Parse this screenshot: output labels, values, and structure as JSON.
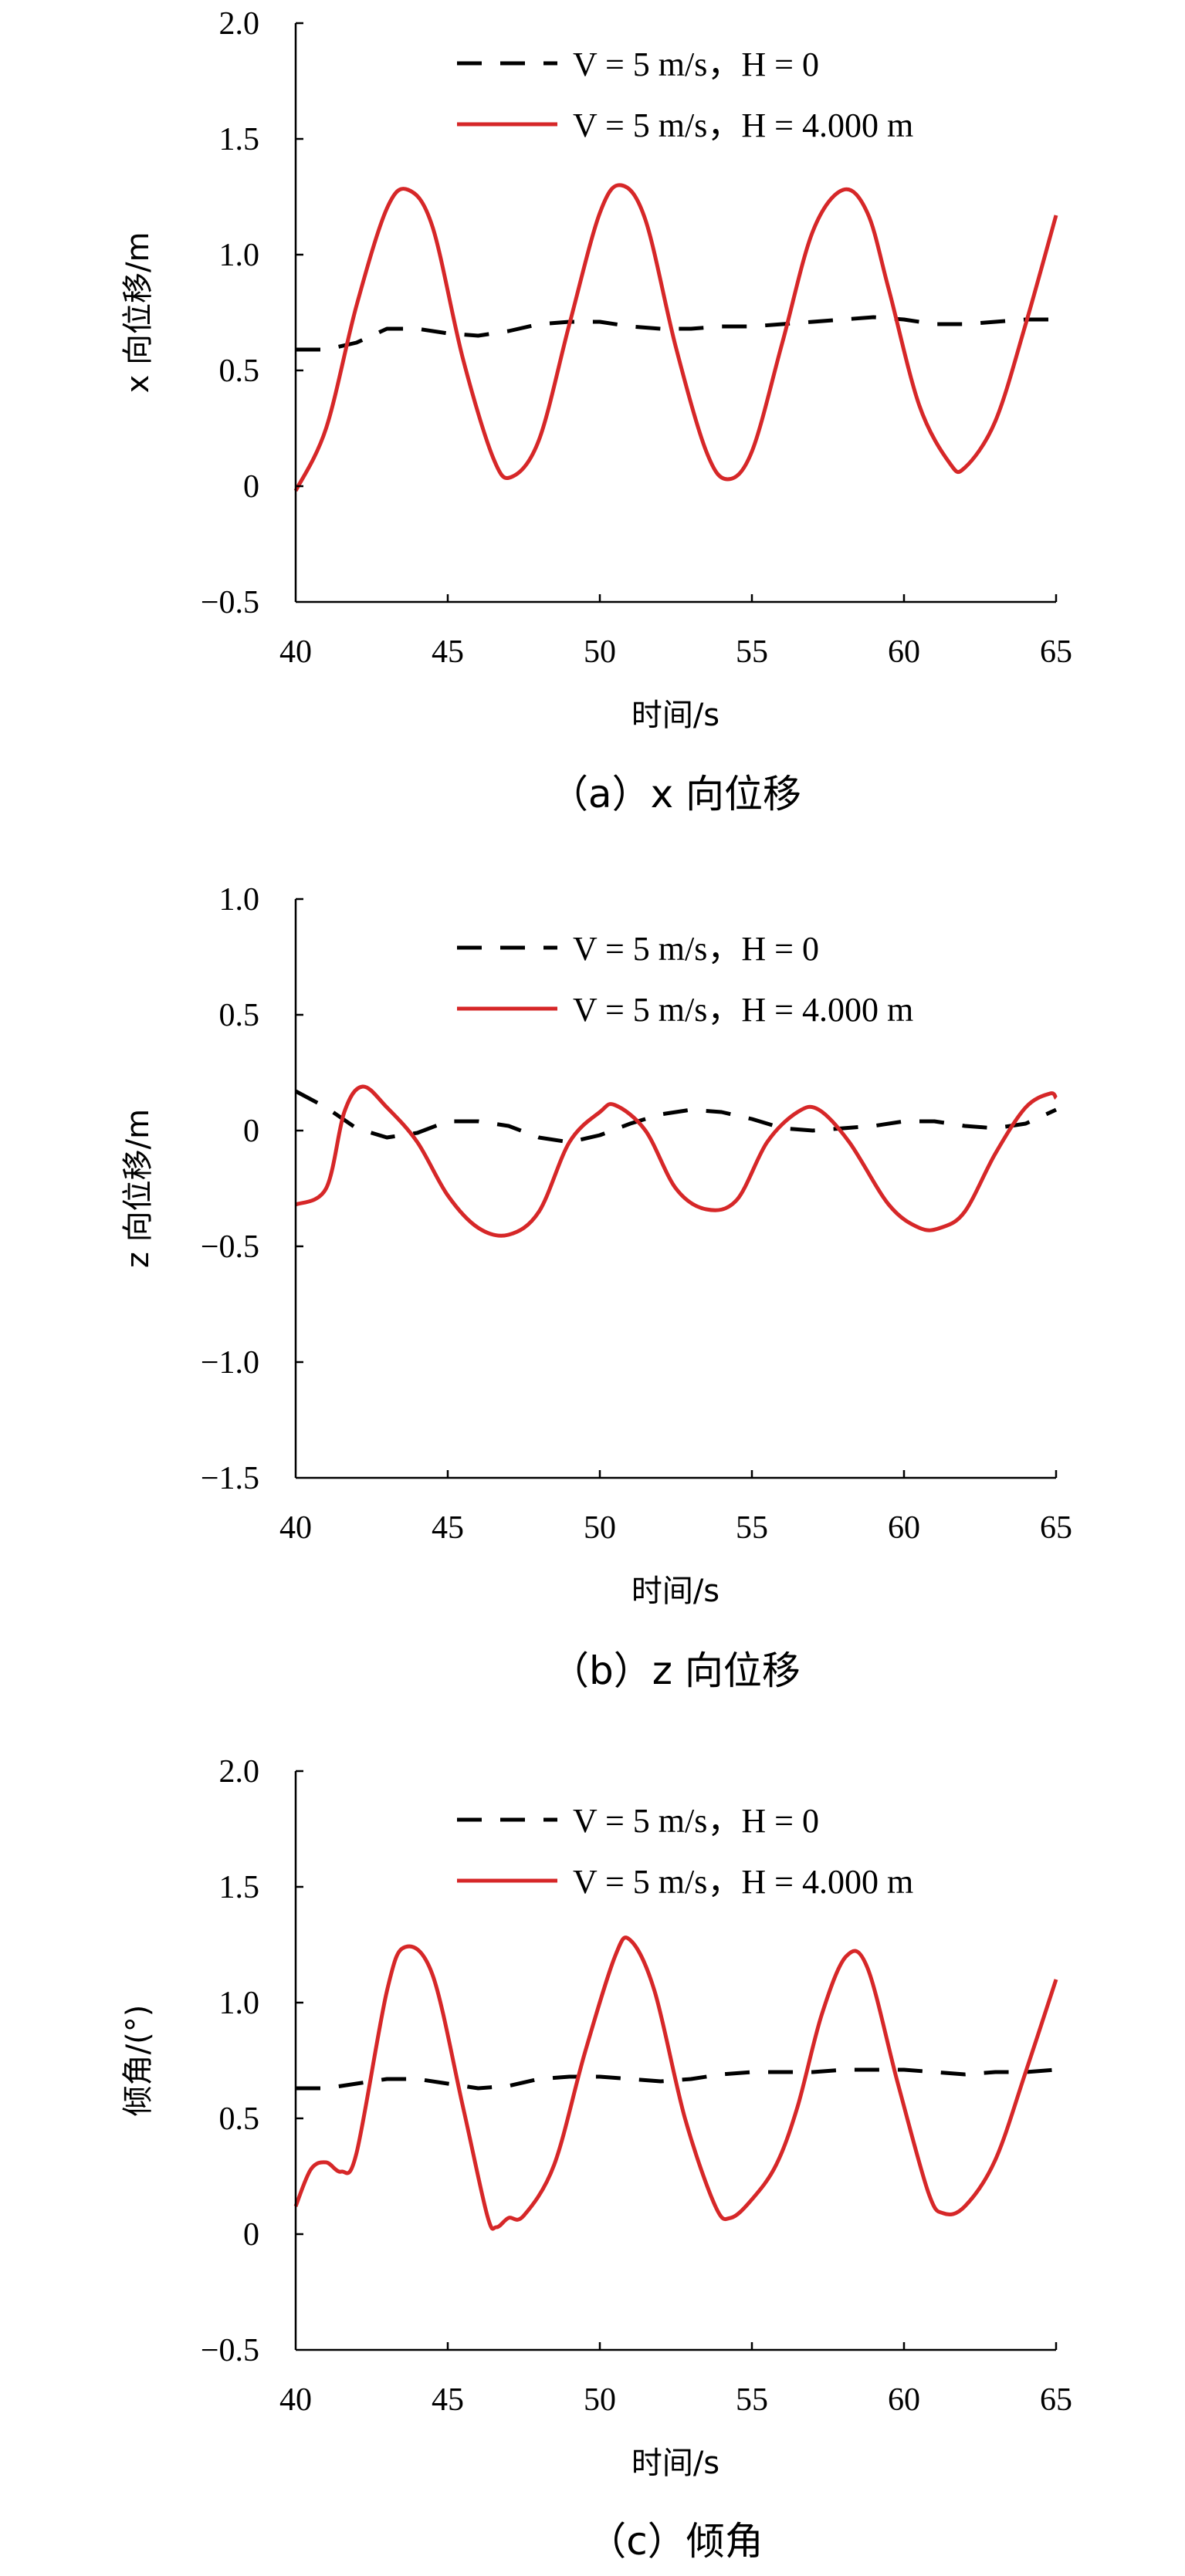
{
  "chart_data": [
    {
      "type": "line",
      "caption": "（a）x 向位移",
      "xlabel": "时间/s",
      "ylabel": "x 向位移/m",
      "xlim": [
        40,
        65
      ],
      "ylim": [
        -0.5,
        2.0
      ],
      "xticks": [
        "40",
        "45",
        "50",
        "55",
        "60",
        "65"
      ],
      "yticks": [
        "−0.5",
        "0",
        "0.5",
        "1.0",
        "1.5",
        "2.0"
      ],
      "legend_position": "top-right",
      "series": [
        {
          "name": "V = 5 m/s，H = 0",
          "style": "dashed",
          "color": "#000000",
          "x": [
            40,
            41,
            42,
            43,
            44,
            45,
            46,
            47,
            48,
            49,
            50,
            51,
            52,
            53,
            54,
            55,
            56,
            57,
            58,
            59,
            60,
            61,
            62,
            63,
            64,
            65
          ],
          "y": [
            0.59,
            0.59,
            0.62,
            0.68,
            0.68,
            0.66,
            0.65,
            0.67,
            0.7,
            0.71,
            0.71,
            0.69,
            0.68,
            0.68,
            0.69,
            0.69,
            0.7,
            0.71,
            0.72,
            0.73,
            0.72,
            0.7,
            0.7,
            0.71,
            0.72,
            0.72
          ]
        },
        {
          "name": "V = 5 m/s，H = 4.000 m",
          "style": "solid",
          "color": "#d62728",
          "x": [
            40,
            41,
            42,
            43,
            43.7,
            44.5,
            45.5,
            46.5,
            47.1,
            48,
            49,
            50,
            50.7,
            51.5,
            52.5,
            53.5,
            54.2,
            55,
            56,
            57,
            58,
            58.8,
            59.5,
            60.5,
            61.5,
            62,
            63,
            64,
            65
          ],
          "y": [
            -0.02,
            0.25,
            0.78,
            1.2,
            1.28,
            1.12,
            0.55,
            0.12,
            0.04,
            0.2,
            0.7,
            1.18,
            1.3,
            1.15,
            0.6,
            0.15,
            0.03,
            0.15,
            0.62,
            1.1,
            1.28,
            1.18,
            0.85,
            0.35,
            0.1,
            0.08,
            0.28,
            0.7,
            1.17
          ]
        }
      ]
    },
    {
      "type": "line",
      "caption": "（b）z 向位移",
      "xlabel": "时间/s",
      "ylabel": "z 向位移/m",
      "xlim": [
        40,
        65
      ],
      "ylim": [
        -1.5,
        1.0
      ],
      "xticks": [
        "40",
        "45",
        "50",
        "55",
        "60",
        "65"
      ],
      "yticks": [
        "−1.5",
        "−1.0",
        "−0.5",
        "0",
        "0.5",
        "1.0"
      ],
      "legend_position": "top-right",
      "series": [
        {
          "name": "V = 5 m/s，H = 0",
          "style": "dashed",
          "color": "#000000",
          "x": [
            40,
            41,
            42,
            43,
            44,
            45,
            46,
            47,
            48,
            49,
            50,
            51,
            52,
            53,
            54,
            55,
            56,
            57,
            58,
            59,
            60,
            61,
            62,
            63,
            64,
            65
          ],
          "y": [
            0.17,
            0.1,
            0.01,
            -0.03,
            -0.01,
            0.04,
            0.04,
            0.02,
            -0.03,
            -0.05,
            -0.02,
            0.03,
            0.07,
            0.09,
            0.08,
            0.05,
            0.01,
            0.0,
            0.01,
            0.02,
            0.04,
            0.04,
            0.02,
            0.01,
            0.03,
            0.09
          ]
        },
        {
          "name": "V = 5 m/s，H = 4.000 m",
          "style": "solid",
          "color": "#d62728",
          "x": [
            40,
            41,
            41.6,
            42.2,
            43,
            44,
            45,
            46,
            47,
            48,
            49,
            50,
            50.5,
            51.5,
            52.5,
            53.5,
            54.5,
            55.5,
            56.5,
            57.2,
            58.2,
            59.5,
            60.5,
            61.2,
            62,
            63,
            64,
            64.8,
            65
          ],
          "y": [
            -0.32,
            -0.25,
            0.08,
            0.19,
            0.1,
            -0.05,
            -0.28,
            -0.42,
            -0.45,
            -0.35,
            -0.05,
            0.08,
            0.11,
            0.0,
            -0.25,
            -0.34,
            -0.3,
            -0.05,
            0.08,
            0.09,
            -0.05,
            -0.32,
            -0.42,
            -0.42,
            -0.35,
            -0.1,
            0.1,
            0.16,
            0.14
          ]
        }
      ]
    },
    {
      "type": "line",
      "caption": "（c）倾角",
      "xlabel": "时间/s",
      "ylabel": "倾角/(°)",
      "xlim": [
        40,
        65
      ],
      "ylim": [
        -0.5,
        2.0
      ],
      "xticks": [
        "40",
        "45",
        "50",
        "55",
        "60",
        "65"
      ],
      "yticks": [
        "−0.5",
        "0",
        "0.5",
        "1.0",
        "1.5",
        "2.0"
      ],
      "legend_position": "top-right",
      "series": [
        {
          "name": "V = 5 m/s，H = 0",
          "style": "dashed",
          "color": "#000000",
          "x": [
            40,
            41,
            42,
            43,
            44,
            45,
            46,
            47,
            48,
            49,
            50,
            51,
            52,
            53,
            54,
            55,
            56,
            57,
            58,
            59,
            60,
            61,
            62,
            63,
            64,
            65
          ],
          "y": [
            0.63,
            0.63,
            0.65,
            0.67,
            0.67,
            0.65,
            0.63,
            0.64,
            0.67,
            0.68,
            0.68,
            0.67,
            0.66,
            0.67,
            0.69,
            0.7,
            0.7,
            0.7,
            0.71,
            0.71,
            0.71,
            0.7,
            0.69,
            0.7,
            0.7,
            0.71
          ]
        },
        {
          "name": "V = 5 m/s，H = 4.000 m",
          "style": "solid",
          "color": "#d62728",
          "x": [
            40,
            40.5,
            41,
            41.5,
            42,
            43,
            43.6,
            44.5,
            45.5,
            46.3,
            46.6,
            47,
            47.5,
            48.5,
            49.5,
            50.5,
            51,
            51.8,
            52.8,
            53.8,
            54.3,
            55,
            55.8,
            56.5,
            57.3,
            58.1,
            58.8,
            59.8,
            60.8,
            61.3,
            62,
            63,
            64,
            65
          ],
          "y": [
            0.12,
            0.28,
            0.31,
            0.27,
            0.35,
            1.05,
            1.24,
            1.12,
            0.55,
            0.08,
            0.03,
            0.07,
            0.08,
            0.3,
            0.78,
            1.2,
            1.27,
            1.05,
            0.5,
            0.12,
            0.07,
            0.15,
            0.3,
            0.55,
            0.95,
            1.2,
            1.15,
            0.65,
            0.18,
            0.09,
            0.12,
            0.32,
            0.7,
            1.1
          ]
        }
      ]
    }
  ]
}
